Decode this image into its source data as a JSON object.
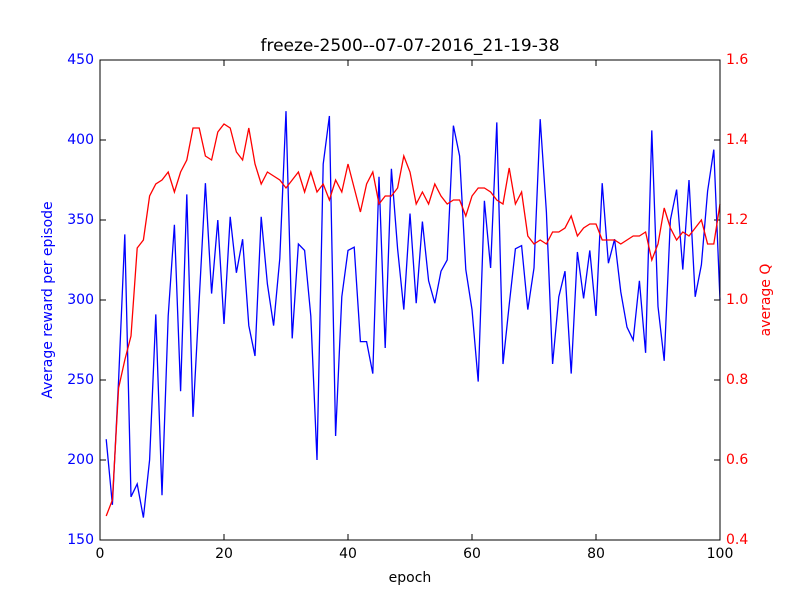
{
  "chart_data": {
    "type": "line",
    "title": "freeze-2500--07-07-2016_21-19-38",
    "x_label": "epoch",
    "y_label": "Average reward per episode",
    "y2_label": "average Q",
    "x": [
      1,
      2,
      3,
      4,
      5,
      6,
      7,
      8,
      9,
      10,
      11,
      12,
      13,
      14,
      15,
      16,
      17,
      18,
      19,
      20,
      21,
      22,
      23,
      24,
      25,
      26,
      27,
      28,
      29,
      30,
      31,
      32,
      33,
      34,
      35,
      36,
      37,
      38,
      39,
      40,
      41,
      42,
      43,
      44,
      45,
      46,
      47,
      48,
      49,
      50,
      51,
      52,
      53,
      54,
      55,
      56,
      57,
      58,
      59,
      60,
      61,
      62,
      63,
      64,
      65,
      66,
      67,
      68,
      69,
      70,
      71,
      72,
      73,
      74,
      75,
      76,
      77,
      78,
      79,
      80,
      81,
      82,
      83,
      84,
      85,
      86,
      87,
      88,
      89,
      90,
      91,
      92,
      93,
      94,
      95,
      96,
      97,
      98,
      99,
      100
    ],
    "series": [
      {
        "color": "#0000ff",
        "values": [
          213,
          172,
          250,
          341,
          177,
          185,
          164,
          200,
          291,
          178,
          290,
          347,
          243,
          366,
          227,
          300,
          373,
          304,
          350,
          285,
          352,
          317,
          338,
          284,
          265,
          352,
          310,
          284,
          326,
          418,
          276,
          335,
          331,
          290,
          200,
          385,
          415,
          215,
          302,
          331,
          333,
          274,
          274,
          254,
          377,
          270,
          382,
          332,
          294,
          354,
          298,
          349,
          312,
          298,
          318,
          325,
          409,
          390,
          319,
          294,
          249,
          362,
          320,
          411,
          260,
          297,
          332,
          334,
          294,
          320,
          413,
          355,
          260,
          302,
          318,
          254,
          330,
          301,
          331,
          290,
          373,
          323,
          338,
          305,
          283,
          275,
          312,
          267,
          406,
          296,
          262,
          350,
          369,
          319,
          375,
          302,
          322,
          368,
          394,
          300
        ]
      },
      {
        "color": "#ff0000",
        "axis": "y2",
        "values": [
          0.46,
          0.5,
          0.78,
          0.85,
          0.91,
          1.13,
          1.15,
          1.26,
          1.29,
          1.3,
          1.32,
          1.27,
          1.32,
          1.35,
          1.43,
          1.43,
          1.36,
          1.35,
          1.42,
          1.44,
          1.43,
          1.37,
          1.35,
          1.43,
          1.34,
          1.29,
          1.32,
          1.31,
          1.3,
          1.28,
          1.3,
          1.32,
          1.27,
          1.32,
          1.27,
          1.29,
          1.25,
          1.3,
          1.27,
          1.34,
          1.28,
          1.22,
          1.29,
          1.32,
          1.24,
          1.26,
          1.26,
          1.28,
          1.36,
          1.32,
          1.24,
          1.27,
          1.24,
          1.29,
          1.26,
          1.24,
          1.25,
          1.25,
          1.21,
          1.26,
          1.28,
          1.28,
          1.27,
          1.25,
          1.24,
          1.33,
          1.24,
          1.27,
          1.16,
          1.14,
          1.15,
          1.14,
          1.17,
          1.17,
          1.18,
          1.21,
          1.16,
          1.18,
          1.19,
          1.19,
          1.15,
          1.15,
          1.15,
          1.14,
          1.15,
          1.16,
          1.16,
          1.17,
          1.1,
          1.14,
          1.23,
          1.18,
          1.15,
          1.17,
          1.16,
          1.18,
          1.2,
          1.14,
          1.14,
          1.24
        ]
      }
    ],
    "xlim": [
      0,
      100
    ],
    "xticks": [
      0,
      20,
      40,
      60,
      80,
      100
    ],
    "ylim": [
      150,
      450
    ],
    "yticks": [
      150,
      200,
      250,
      300,
      350,
      400,
      450
    ],
    "y2lim": [
      0.4,
      1.6
    ],
    "y2ticks": [
      0.4,
      0.6,
      0.8,
      {
        "value": 1,
        "label": "1.0"
      },
      1.2,
      1.4,
      1.6
    ]
  }
}
